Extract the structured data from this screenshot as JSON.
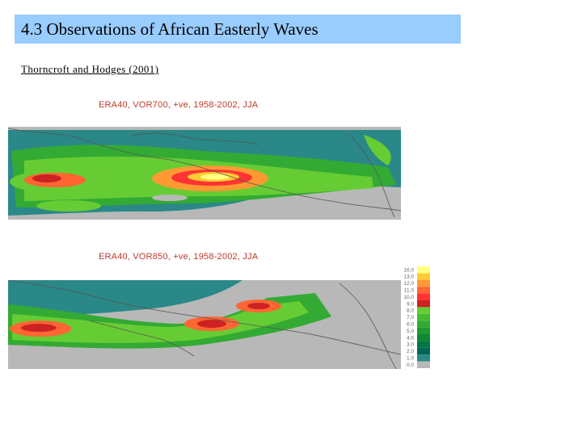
{
  "slide": {
    "title": "4.3 Observations of African Easterly Waves",
    "citation": "Thorncroft and Hodges (2001)"
  },
  "maps": [
    {
      "title": "ERA40, VOR700, +ve, 1958-2002, JJA"
    },
    {
      "title": "ERA40, VOR850, +ve, 1958-2002, JJA"
    }
  ],
  "colorbar": {
    "labels": [
      "16.0",
      "13.0",
      "12.0",
      "11.0",
      "10.0",
      "9.0",
      "8.0",
      "7.0",
      "6.0",
      "5.0",
      "4.0",
      "3.0",
      "2.0",
      "1.0",
      "0.0"
    ],
    "colors": [
      "#ffff80",
      "#ffcc33",
      "#ff9933",
      "#ff6633",
      "#ff3333",
      "#cc2222",
      "#66cc33",
      "#44bb33",
      "#33aa33",
      "#229933",
      "#118833",
      "#007744",
      "#006655",
      "#2a8888",
      "#b8b8b8"
    ]
  },
  "colors": {
    "title_bar": "#99ccff",
    "land": "#b8b8b8",
    "map_title": "#c0392b"
  }
}
